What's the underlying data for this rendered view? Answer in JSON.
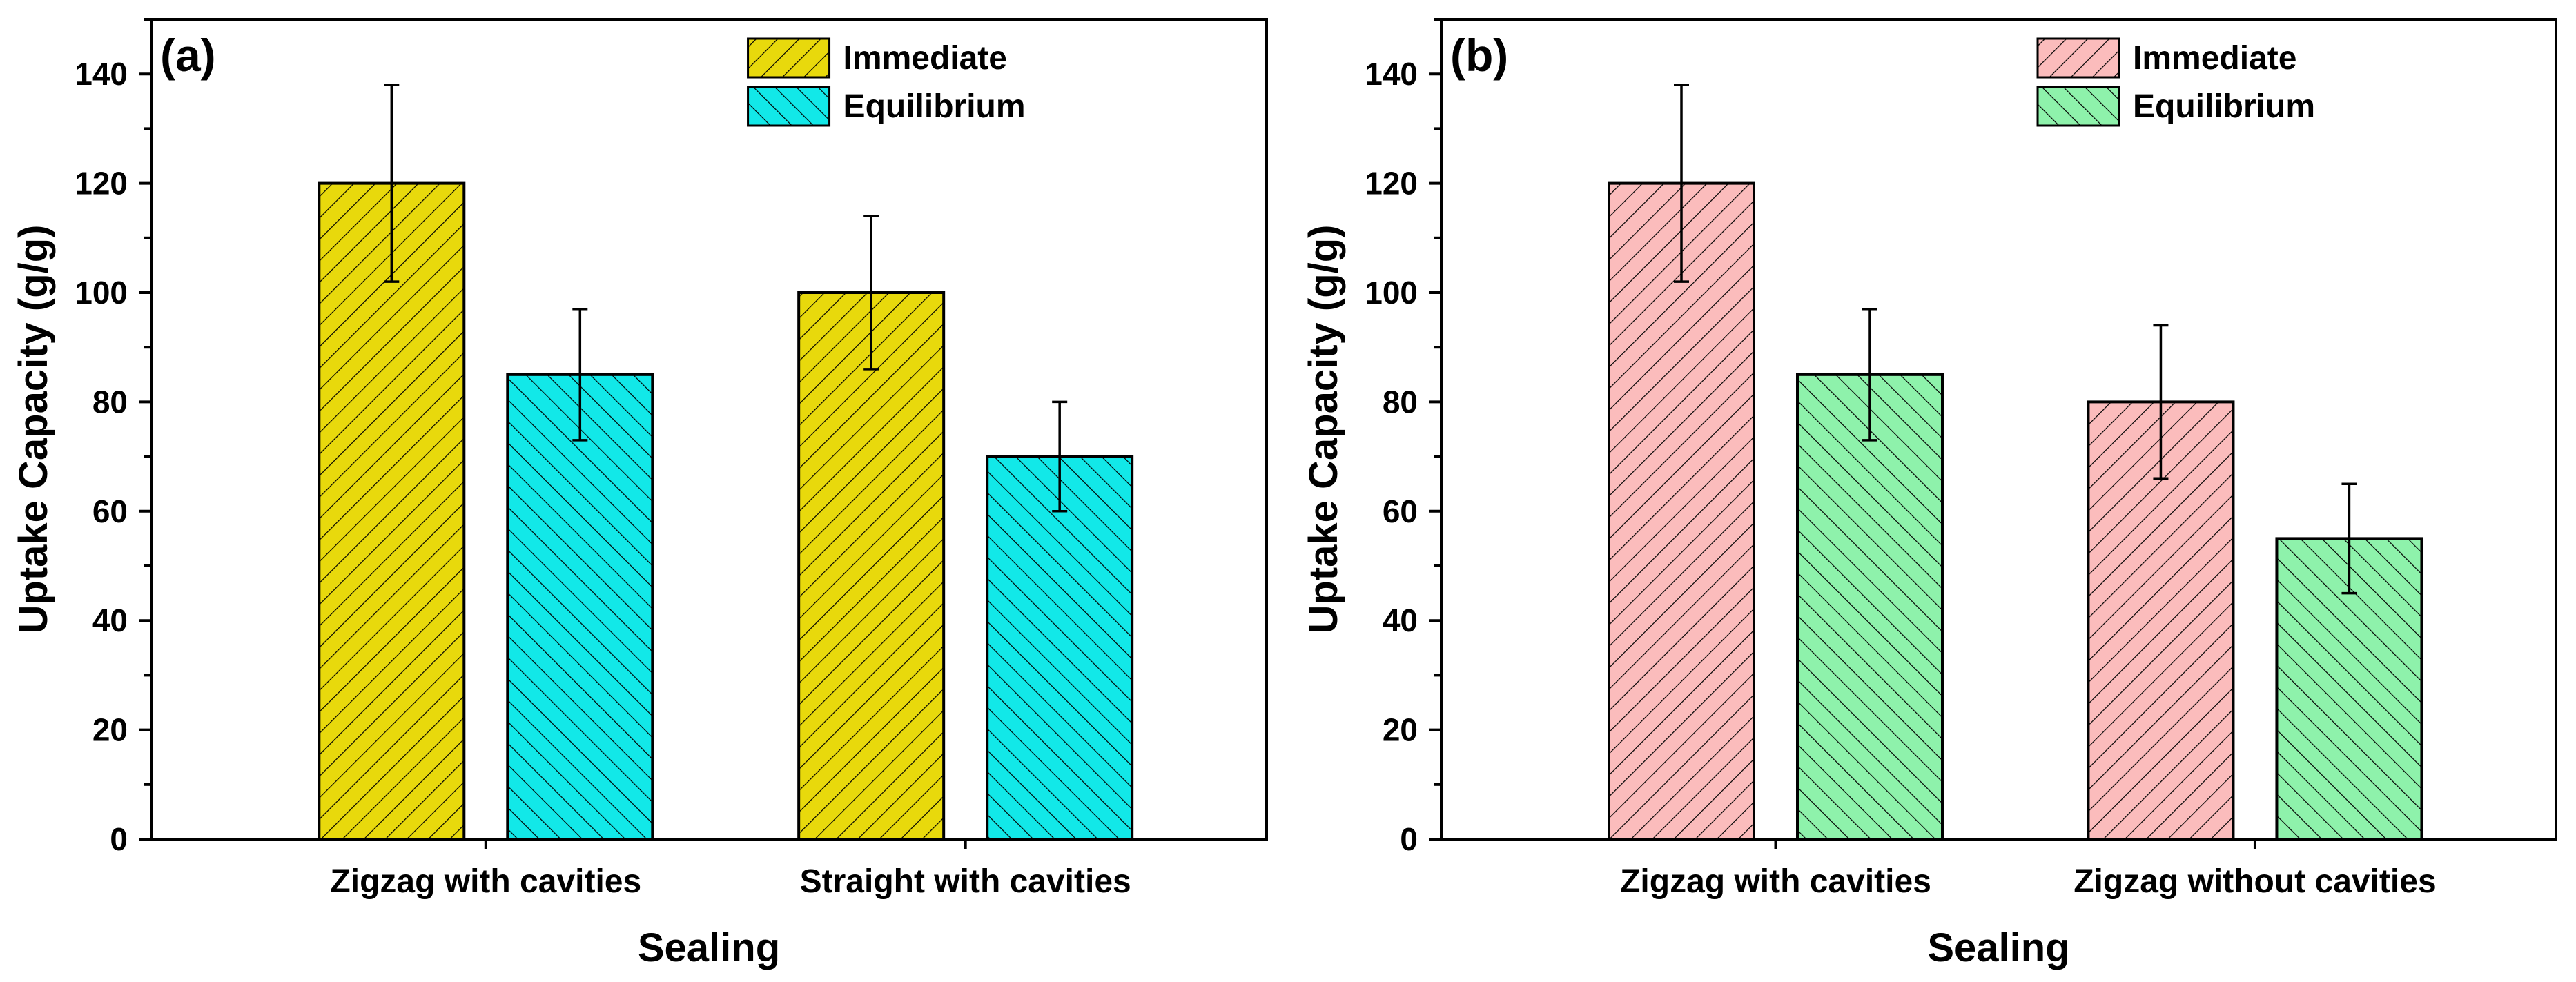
{
  "chart_data": [
    {
      "type": "bar",
      "panel_label": "(a)",
      "categories": [
        "Zigzag with cavities",
        "Straight with cavities"
      ],
      "series": [
        {
          "name": "Immediate",
          "values": [
            120,
            100
          ],
          "errors": [
            18,
            14
          ],
          "color": "#e8d90c",
          "hatch": "forward"
        },
        {
          "name": "Equilibrium",
          "values": [
            85,
            70
          ],
          "errors": [
            12,
            10
          ],
          "color": "#12e8e8",
          "hatch": "back"
        }
      ],
      "xlabel": "Sealing",
      "ylabel": "Uptake Capacity (g/g)",
      "ylim": [
        0,
        150
      ],
      "yticks": [
        0,
        20,
        40,
        60,
        80,
        100,
        120,
        140
      ],
      "legend_position": "top-right"
    },
    {
      "type": "bar",
      "panel_label": "(b)",
      "categories": [
        "Zigzag with cavities",
        "Zigzag without cavities"
      ],
      "series": [
        {
          "name": "Immediate",
          "values": [
            120,
            80
          ],
          "errors": [
            18,
            14
          ],
          "color": "#fbbcbc",
          "hatch": "forward"
        },
        {
          "name": "Equilibrium",
          "values": [
            85,
            55
          ],
          "errors": [
            12,
            10
          ],
          "color": "#8ef2ab",
          "hatch": "back"
        }
      ],
      "xlabel": "Sealing",
      "ylabel": "Uptake Capacity (g/g)",
      "ylim": [
        0,
        150
      ],
      "yticks": [
        0,
        20,
        40,
        60,
        80,
        100,
        120,
        140
      ],
      "legend_position": "top-right"
    }
  ]
}
